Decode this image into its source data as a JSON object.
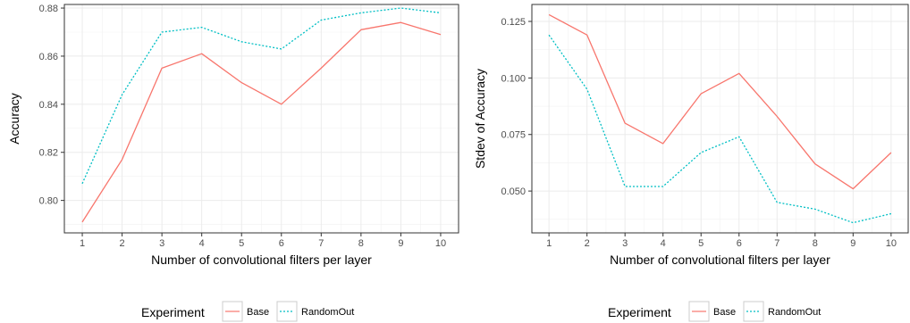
{
  "legend": {
    "title": "Experiment",
    "entries": [
      {
        "name": "Base",
        "color": "#f8766d",
        "dash": "solid"
      },
      {
        "name": "RandomOut",
        "color": "#00bfc4",
        "dash": "dotted"
      }
    ]
  },
  "chart_data": [
    {
      "type": "line",
      "xlabel": "Number of convolutional filters per layer",
      "ylabel": "Accuracy",
      "x": [
        1,
        2,
        3,
        4,
        5,
        6,
        7,
        8,
        9,
        10
      ],
      "xlim": [
        0.55,
        10.45
      ],
      "ylim": [
        0.7865,
        0.8815
      ],
      "xticks": [
        "1",
        "2",
        "3",
        "4",
        "5",
        "6",
        "7",
        "8",
        "9",
        "10"
      ],
      "yticks": [
        0.8,
        0.82,
        0.84,
        0.86,
        0.88
      ],
      "ytick_labels": [
        "0.80",
        "0.82",
        "0.84",
        "0.86",
        "0.88"
      ],
      "grid": true,
      "series": [
        {
          "name": "Base",
          "values": [
            0.791,
            0.817,
            0.855,
            0.861,
            0.849,
            0.84,
            0.855,
            0.871,
            0.874,
            0.869
          ]
        },
        {
          "name": "RandomOut",
          "values": [
            0.807,
            0.844,
            0.87,
            0.872,
            0.866,
            0.863,
            0.875,
            0.878,
            0.88,
            0.878
          ]
        }
      ]
    },
    {
      "type": "line",
      "xlabel": "Number of convolutional filters per layer",
      "ylabel": "Stdev of Accuracy",
      "x": [
        1,
        2,
        3,
        4,
        5,
        6,
        7,
        8,
        9,
        10
      ],
      "xlim": [
        0.55,
        10.45
      ],
      "ylim": [
        0.0315,
        0.1325
      ],
      "xticks": [
        "1",
        "2",
        "3",
        "4",
        "5",
        "6",
        "7",
        "8",
        "9",
        "10"
      ],
      "yticks": [
        0.05,
        0.075,
        0.1,
        0.125
      ],
      "ytick_labels": [
        "0.050",
        "0.075",
        "0.100",
        "0.125"
      ],
      "grid": true,
      "series": [
        {
          "name": "Base",
          "values": [
            0.128,
            0.119,
            0.08,
            0.071,
            0.093,
            0.102,
            0.083,
            0.062,
            0.051,
            0.067
          ]
        },
        {
          "name": "RandomOut",
          "values": [
            0.119,
            0.095,
            0.052,
            0.052,
            0.067,
            0.074,
            0.045,
            0.042,
            0.036,
            0.04
          ]
        }
      ]
    }
  ]
}
